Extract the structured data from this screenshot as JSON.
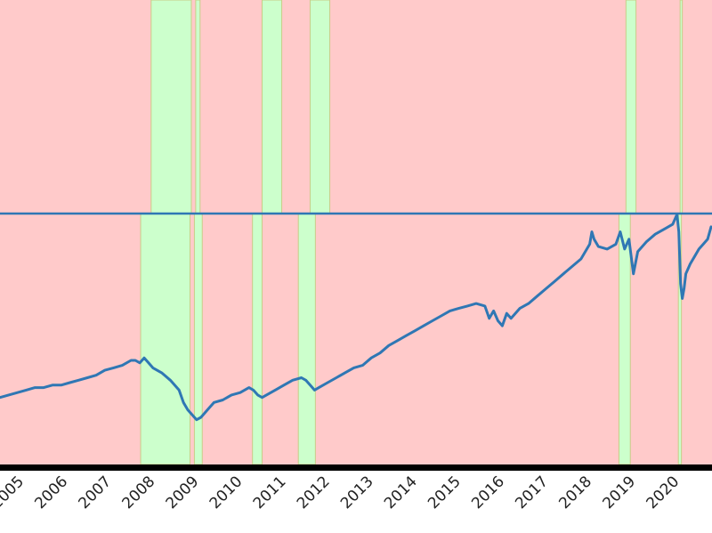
{
  "chart_data": {
    "type": "line",
    "x_ticks": [
      "2005",
      "2006",
      "2007",
      "2008",
      "2009",
      "2010",
      "2011",
      "2012",
      "2013",
      "2014",
      "2015",
      "2016",
      "2017",
      "2018",
      "2019",
      "2020"
    ],
    "xlim": [
      2004.5,
      2020.8
    ],
    "ylim": [
      0,
      1
    ],
    "grid": false,
    "legend": "none",
    "colors": {
      "series": "#2f77b4",
      "regime_a": "#ffcaca",
      "regime_b": "#ccffcc",
      "band_edge": "#c9cc88",
      "axis": "#000000"
    },
    "panels": [
      {
        "name": "top",
        "shaded_spans_regime_b": [
          [
            2007.96,
            2008.88
          ],
          [
            2008.98,
            2009.08
          ],
          [
            2010.5,
            2010.95
          ],
          [
            2011.6,
            2012.05
          ],
          [
            2018.83,
            2019.06
          ],
          [
            2020.07,
            2020.12
          ]
        ]
      },
      {
        "name": "bottom",
        "shaded_spans_regime_b": [
          [
            2007.72,
            2008.85
          ],
          [
            2008.95,
            2009.13
          ],
          [
            2010.28,
            2010.5
          ],
          [
            2011.33,
            2011.72
          ],
          [
            2018.67,
            2018.93
          ],
          [
            2020.03,
            2020.1
          ]
        ],
        "series": [
          {
            "x": [
              2004.5,
              2004.7,
              2004.9,
              2005.1,
              2005.3,
              2005.5,
              2005.7,
              2005.9,
              2006.1,
              2006.3,
              2006.5,
              2006.7,
              2006.9,
              2007.1,
              2007.3,
              2007.5,
              2007.6,
              2007.7,
              2007.8,
              2007.9,
              2008.0,
              2008.2,
              2008.4,
              2008.6,
              2008.7,
              2008.8,
              2008.9,
              2009.0,
              2009.1,
              2009.2,
              2009.3,
              2009.4,
              2009.6,
              2009.8,
              2010.0,
              2010.2,
              2010.3,
              2010.4,
              2010.5,
              2010.6,
              2010.8,
              2011.0,
              2011.2,
              2011.4,
              2011.5,
              2011.6,
              2011.7,
              2011.8,
              2012.0,
              2012.2,
              2012.4,
              2012.6,
              2012.8,
              2013.0,
              2013.2,
              2013.4,
              2013.6,
              2013.8,
              2014.0,
              2014.2,
              2014.4,
              2014.6,
              2014.8,
              2015.0,
              2015.2,
              2015.4,
              2015.6,
              2015.7,
              2015.8,
              2015.9,
              2016.0,
              2016.1,
              2016.2,
              2016.4,
              2016.6,
              2016.8,
              2017.0,
              2017.2,
              2017.4,
              2017.6,
              2017.8,
              2018.0,
              2018.05,
              2018.1,
              2018.2,
              2018.4,
              2018.6,
              2018.7,
              2018.8,
              2018.9,
              2019.0,
              2019.1,
              2019.3,
              2019.5,
              2019.7,
              2019.9,
              2020.0,
              2020.04,
              2020.08,
              2020.12,
              2020.16,
              2020.2,
              2020.3,
              2020.4,
              2020.5,
              2020.6,
              2020.7,
              2020.78
            ],
            "y": [
              0.26,
              0.27,
              0.28,
              0.29,
              0.3,
              0.3,
              0.31,
              0.31,
              0.32,
              0.33,
              0.34,
              0.35,
              0.37,
              0.38,
              0.39,
              0.41,
              0.41,
              0.4,
              0.42,
              0.4,
              0.38,
              0.36,
              0.33,
              0.29,
              0.24,
              0.21,
              0.19,
              0.17,
              0.18,
              0.2,
              0.22,
              0.24,
              0.25,
              0.27,
              0.28,
              0.3,
              0.29,
              0.27,
              0.26,
              0.27,
              0.29,
              0.31,
              0.33,
              0.34,
              0.33,
              0.31,
              0.29,
              0.3,
              0.32,
              0.34,
              0.36,
              0.38,
              0.39,
              0.42,
              0.44,
              0.47,
              0.49,
              0.51,
              0.53,
              0.55,
              0.57,
              0.59,
              0.61,
              0.62,
              0.63,
              0.64,
              0.63,
              0.58,
              0.61,
              0.57,
              0.55,
              0.6,
              0.58,
              0.62,
              0.64,
              0.67,
              0.7,
              0.73,
              0.76,
              0.79,
              0.82,
              0.88,
              0.93,
              0.9,
              0.87,
              0.86,
              0.88,
              0.93,
              0.86,
              0.9,
              0.76,
              0.85,
              0.89,
              0.92,
              0.94,
              0.96,
              1.0,
              0.93,
              0.72,
              0.66,
              0.7,
              0.76,
              0.8,
              0.83,
              0.86,
              0.88,
              0.9,
              0.95
            ]
          }
        ]
      }
    ]
  }
}
